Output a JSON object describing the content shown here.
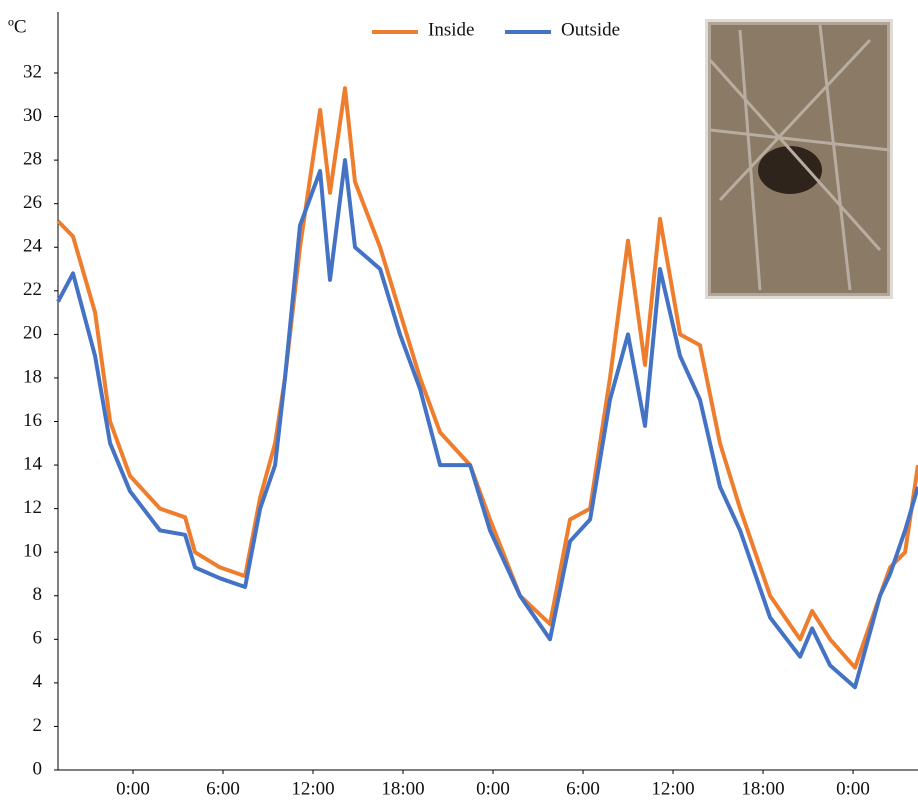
{
  "chart_data": {
    "type": "line",
    "y_unit": "ºC",
    "x": [
      -5,
      -4,
      -2.53,
      -1.53,
      -0.2,
      1.8,
      3.47,
      4.13,
      5.8,
      7.47,
      8.47,
      9.47,
      10.13,
      11.13,
      12.47,
      13.13,
      14.13,
      14.8,
      16.47,
      17.8,
      19.13,
      20.47,
      22.47,
      23.8,
      25.8,
      27.8,
      29.13,
      30.47,
      31.8,
      33,
      34.13,
      35.13,
      36.47,
      37.8,
      39.13,
      40.47,
      42.47,
      44.47,
      45.27,
      46.47,
      48.13,
      49.8,
      50.47,
      51.47,
      52.33
    ],
    "series": [
      {
        "name": "Inside",
        "color": "#ee7d2e",
        "values": [
          25.2,
          24.5,
          21,
          16,
          13.5,
          12,
          11.6,
          10,
          9.3,
          8.9,
          12.5,
          15,
          18,
          24,
          30.3,
          26.5,
          31.3,
          27,
          24,
          21,
          18,
          15.5,
          14,
          11.5,
          8,
          6.7,
          11.5,
          12,
          18,
          24.3,
          18.6,
          25.3,
          20,
          19.5,
          15,
          12,
          8,
          6,
          7.3,
          6,
          4.7,
          8,
          9.3,
          10,
          14
        ]
      },
      {
        "name": "Outside",
        "color": "#4472c4",
        "values": [
          21.5,
          22.8,
          19,
          15,
          12.8,
          11,
          10.8,
          9.3,
          8.8,
          8.4,
          12,
          14,
          18,
          25,
          27.5,
          22.5,
          28,
          24,
          23,
          20,
          17.5,
          14,
          14,
          11,
          8,
          6,
          10.5,
          11.5,
          17,
          20,
          15.8,
          23,
          19,
          17,
          13,
          11,
          7,
          5.2,
          6.5,
          4.8,
          3.8,
          8,
          9,
          11,
          13
        ]
      }
    ],
    "xlim": [
      -5,
      52.33
    ],
    "xticks": [
      {
        "value": 0,
        "label": "0:00"
      },
      {
        "value": 6,
        "label": "6:00"
      },
      {
        "value": 12,
        "label": "12:00"
      },
      {
        "value": 18,
        "label": "18:00"
      },
      {
        "value": 24,
        "label": "0:00"
      },
      {
        "value": 30,
        "label": "6:00"
      },
      {
        "value": 36,
        "label": "12:00"
      },
      {
        "value": 42,
        "label": "18:00"
      },
      {
        "value": 48,
        "label": "0:00"
      }
    ],
    "ylim": [
      0,
      34.8
    ],
    "yticks": [
      0,
      2,
      4,
      6,
      8,
      10,
      12,
      14,
      16,
      18,
      20,
      22,
      24,
      26,
      28,
      30,
      32
    ],
    "grid": false
  }
}
